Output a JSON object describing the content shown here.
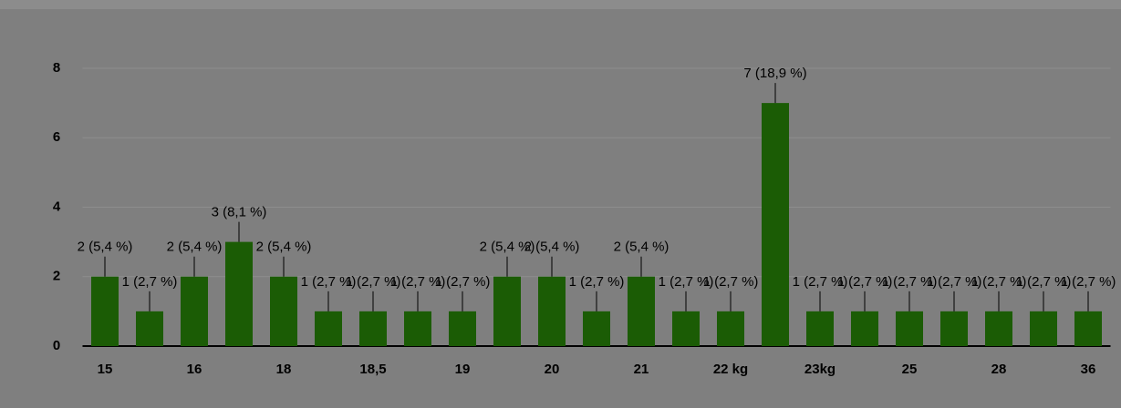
{
  "chart_data": {
    "type": "bar",
    "categories": [
      "15",
      null,
      "16",
      null,
      "18",
      null,
      "18,5",
      null,
      "19",
      null,
      "20",
      null,
      "21",
      null,
      "22 kg",
      null,
      "23kg",
      null,
      "25",
      null,
      "28",
      null,
      "36"
    ],
    "values": [
      2,
      1,
      2,
      3,
      2,
      1,
      1,
      1,
      1,
      2,
      2,
      1,
      2,
      1,
      1,
      7,
      1,
      1,
      1,
      1,
      1,
      1,
      1
    ],
    "value_labels": [
      "2 (5,4 %)",
      "1 (2,7 %)",
      "2 (5,4 %)",
      "3 (8,1 %)",
      "2 (5,4 %)",
      "1 (2,7 %)",
      "1 (2,7 %)",
      "1 (2,7 %)",
      "1 (2,7 %)",
      "2 (5,4 %)",
      "2 (5,4 %)",
      "1 (2,7 %)",
      "2 (5,4 %)",
      "1 (2,7 %)",
      "1 (2,7 %)",
      "7 (18,9 %)",
      "1 (2,7 %)",
      "1 (2,7 %)",
      "1 (2,7 %)",
      "1 (2,7 %)",
      "1 (2,7 %)",
      "1 (2,7 %)",
      "1 (2,7 %)"
    ],
    "color": "#1b5c05",
    "ylim": [
      0,
      8
    ],
    "yticks": [
      0,
      2,
      4,
      6,
      8
    ],
    "grid": true
  }
}
